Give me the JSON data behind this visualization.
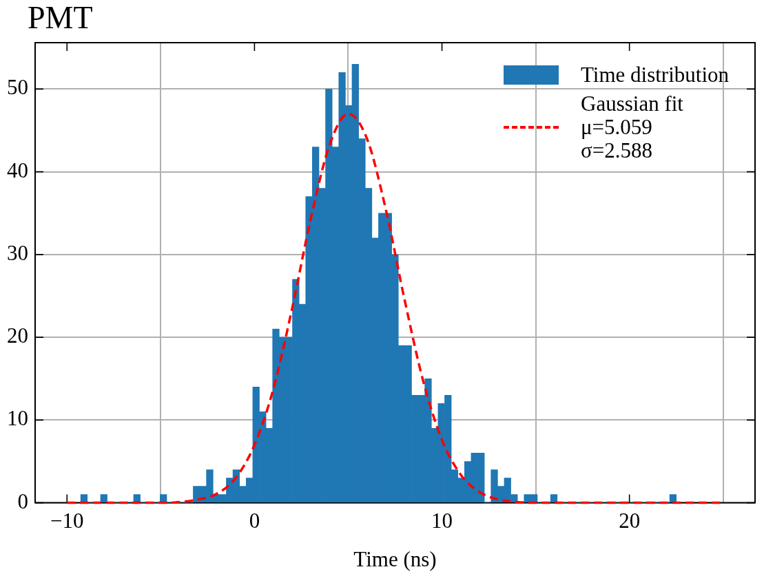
{
  "chart_data": {
    "type": "histogram",
    "title": "PMT",
    "xlabel": "Time (ns)",
    "bins": [
      -9.27,
      -8.917,
      -8.564,
      -8.211,
      -7.858,
      -7.505,
      -7.152,
      -6.799,
      -6.446,
      -6.093,
      -5.74,
      -5.387,
      -5.034,
      -4.681,
      -4.328,
      -3.975,
      -3.622,
      -3.269,
      -2.916,
      -2.563,
      -2.21,
      -1.857,
      -1.504,
      -1.151,
      -0.798,
      -0.445,
      -0.092,
      0.261,
      0.614,
      0.967,
      1.32,
      1.673,
      2.026,
      2.379,
      2.732,
      3.085,
      3.438,
      3.791,
      4.144,
      4.497,
      4.85,
      5.203,
      5.556,
      5.909,
      6.262,
      6.615,
      6.968,
      7.321,
      7.674,
      8.027,
      8.38,
      8.733,
      9.086,
      9.439,
      9.792,
      10.145,
      10.498,
      10.851,
      11.204,
      11.557,
      11.91,
      12.263,
      12.616,
      12.969,
      13.322,
      13.675,
      14.028,
      14.381,
      14.734,
      15.087,
      15.44,
      15.793,
      16.146,
      16.499,
      16.852,
      17.205,
      17.558,
      17.911,
      18.264,
      18.617,
      18.97,
      19.323,
      19.676,
      20.029,
      20.382,
      20.735,
      21.088,
      21.441,
      21.794,
      22.147,
      22.5
    ],
    "series": [
      {
        "name": "Time distribution",
        "color": "#1f77b4",
        "values": [
          1,
          0,
          0,
          1,
          0,
          0,
          0,
          0,
          1,
          0,
          0,
          0,
          1,
          0,
          0,
          0,
          0,
          2,
          2,
          4,
          1,
          1,
          3,
          4,
          2,
          3,
          14,
          11,
          9,
          21,
          20,
          20,
          27,
          24,
          37,
          43,
          38,
          50,
          43,
          52,
          48,
          53,
          44,
          38,
          32,
          35,
          35,
          30,
          19,
          19,
          13,
          13,
          15,
          9,
          12,
          13,
          4,
          3,
          5,
          6,
          6,
          0,
          4,
          2,
          3,
          1,
          0,
          1,
          1,
          0,
          0,
          1,
          0,
          0,
          0,
          0,
          0,
          0,
          0,
          0,
          0,
          0,
          0,
          0,
          0,
          0,
          0,
          0,
          0,
          1
        ]
      },
      {
        "type": "line",
        "name": "Gaussian fit\nμ=5.059\nσ=2.588",
        "color": "#ff0000",
        "line_style": "dashed",
        "marker": "none",
        "x": [
          -10,
          -5,
          -3,
          -2,
          -1,
          0,
          1,
          2,
          3,
          4,
          5,
          6,
          7,
          8,
          9,
          10,
          11,
          12,
          13,
          14,
          15,
          20,
          25
        ],
        "values": [
          0,
          0,
          0.4,
          1.1,
          3.0,
          7.0,
          13.7,
          23.4,
          34.3,
          43.2,
          47.0,
          44.0,
          35.5,
          24.6,
          14.7,
          7.6,
          3.4,
          1.3,
          0.4,
          0.1,
          0,
          0,
          0
        ]
      }
    ],
    "xlim": [
      -11.7,
      26.7
    ],
    "xticks": [
      -10,
      0,
      10,
      20
    ],
    "ylim": [
      0,
      55.6
    ],
    "yticks": [
      0,
      10,
      20,
      30,
      40,
      50
    ],
    "grid": true,
    "legend": "top right"
  }
}
